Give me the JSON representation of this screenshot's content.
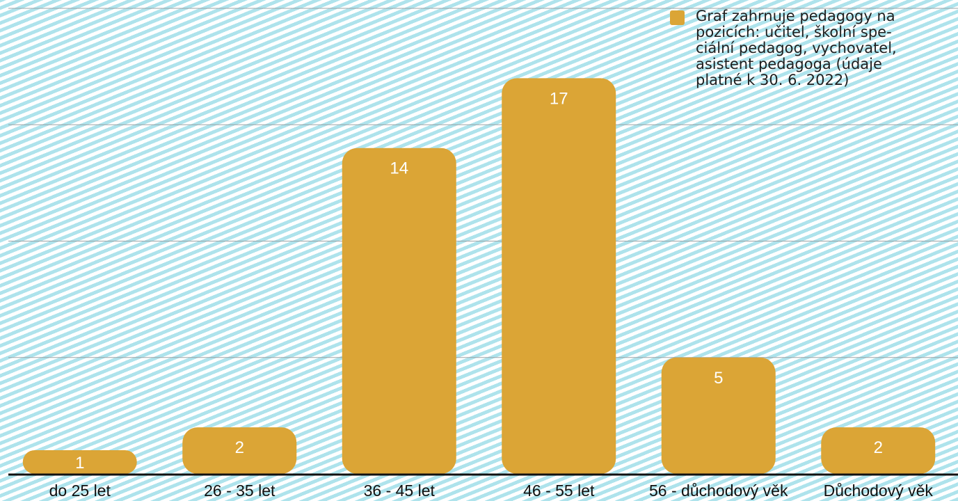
{
  "chart_data": {
    "type": "bar",
    "categories": [
      "do 25 let",
      "26 - 35 let",
      "36 - 45 let",
      "46 - 55 let",
      "56 - důchodový věk",
      "Důchodový věk"
    ],
    "values": [
      1,
      2,
      14,
      17,
      5,
      2
    ],
    "ylim": [
      0,
      20
    ],
    "grid": true,
    "legend": {
      "position": "top-right",
      "entries": [
        "Graf zahrnuje pedagogy na pozicích: učitel, školní spe-ciální pedagog, vychovatel, asistent pedagoga (údaje platné k 30. 6. 2022)"
      ]
    },
    "colors": {
      "bar": "#dba536",
      "label": "#ffffff",
      "axis": "#111111",
      "grid": "#9aa3a6"
    }
  }
}
